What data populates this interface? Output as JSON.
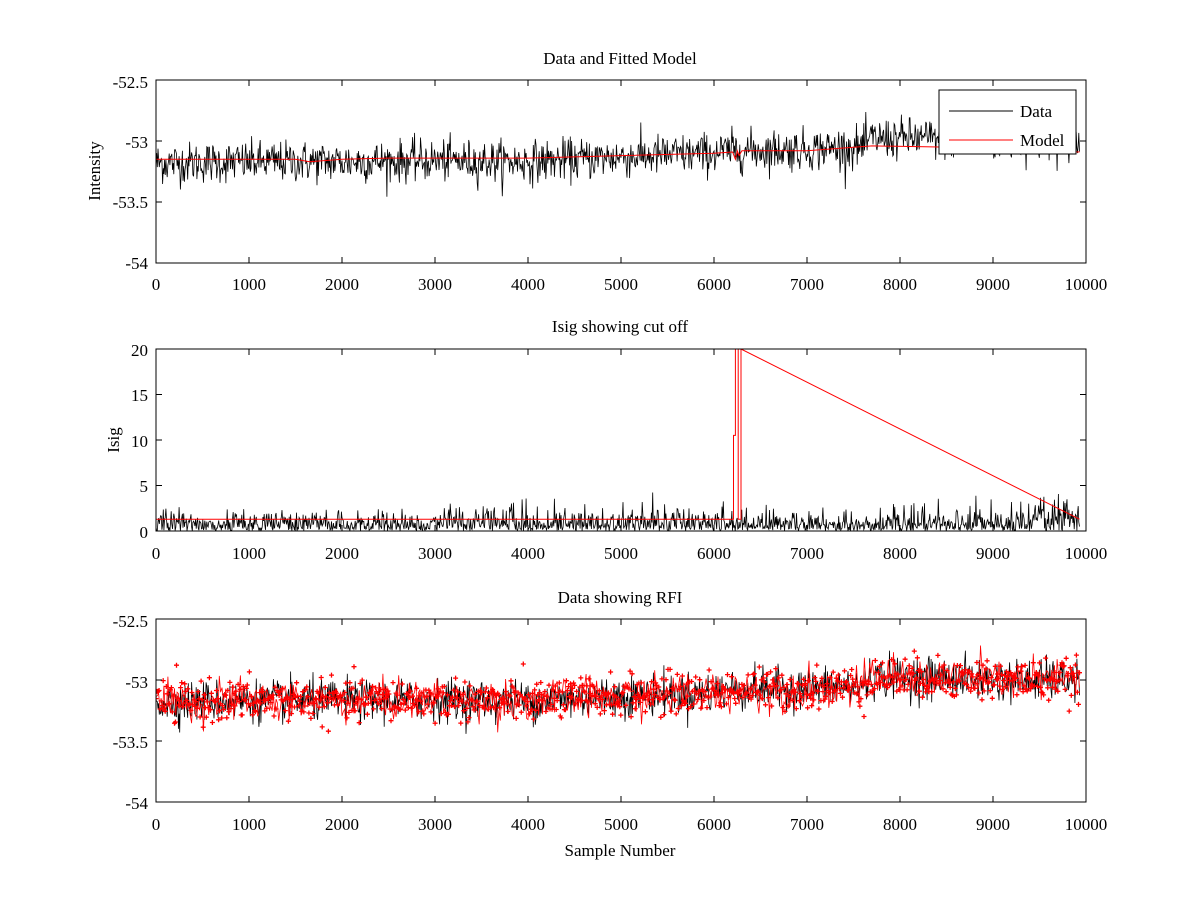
{
  "colors": {
    "data": "#000000",
    "model": "#ff0000",
    "rfi": "#ff0000",
    "axes": "#000000",
    "background": "#ffffff"
  },
  "chart_data": [
    {
      "type": "line",
      "title": "Data and Fitted Model",
      "xlabel": "",
      "ylabel": "Intensity",
      "xlim": [
        0,
        10000
      ],
      "ylim": [
        -54,
        -52.5
      ],
      "xticks": [
        "0",
        "1000",
        "2000",
        "3000",
        "4000",
        "5000",
        "6000",
        "7000",
        "8000",
        "9000",
        "10000"
      ],
      "yticks": [
        "-54",
        "-53.5",
        "-53",
        "-52.5"
      ],
      "legend": {
        "placement": "top-right",
        "entries": [
          "Data",
          "Model"
        ]
      },
      "series": [
        {
          "name": "Data",
          "color": "#000000",
          "kind": "noisy-trace",
          "x_range": [
            0,
            9930
          ],
          "center_x": [
            0,
            1000,
            2000,
            3000,
            4000,
            5000,
            6000,
            6200,
            7000,
            7600,
            7700,
            8500,
            9000,
            9930
          ],
          "center_y": [
            -53.18,
            -53.17,
            -53.17,
            -53.16,
            -53.17,
            -53.13,
            -53.1,
            -53.08,
            -53.07,
            -53.05,
            -52.98,
            -52.98,
            -53.0,
            -53.0
          ],
          "spread": 0.12
        },
        {
          "name": "Model",
          "color": "#ff0000",
          "x": [
            0,
            1000,
            1500,
            1650,
            2000,
            2500,
            3000,
            4000,
            5000,
            6000,
            6200,
            6230,
            6250,
            6270,
            6300,
            7000,
            7700,
            8500,
            9000,
            9930
          ],
          "y": [
            -53.15,
            -53.15,
            -53.15,
            -53.17,
            -53.15,
            -53.14,
            -53.14,
            -53.14,
            -53.12,
            -53.1,
            -53.09,
            -53.15,
            -53.08,
            -53.12,
            -53.08,
            -53.08,
            -53.04,
            -53.05,
            -53.07,
            -53.09
          ]
        }
      ]
    },
    {
      "type": "line",
      "title": "Isig showing cut off",
      "xlabel": "",
      "ylabel": "Isig",
      "xlim": [
        0,
        10000
      ],
      "ylim": [
        0,
        20
      ],
      "xticks": [
        "0",
        "1000",
        "2000",
        "3000",
        "4000",
        "5000",
        "6000",
        "7000",
        "8000",
        "9000",
        "10000"
      ],
      "yticks": [
        "0",
        "5",
        "10",
        "15",
        "20"
      ],
      "series": [
        {
          "color": "#000000",
          "kind": "noise-bars",
          "x_range": [
            0,
            9930
          ],
          "center_x": [
            0,
            3000,
            3900,
            4000,
            6000,
            7500,
            8000,
            9000,
            9930
          ],
          "peak_y": [
            2.2,
            2.4,
            3.2,
            2.5,
            2.5,
            2.0,
            2.5,
            3.0,
            3.6
          ]
        },
        {
          "color": "#ff0000",
          "x": [
            0,
            6200,
            6210,
            6210,
            6230,
            6230,
            6260,
            6260,
            6290,
            6290,
            9930
          ],
          "y": [
            1.3,
            1.3,
            1.3,
            10.5,
            10.5,
            20,
            20,
            1.3,
            1.3,
            20,
            1.3
          ]
        }
      ]
    },
    {
      "type": "scatter",
      "title": "Data showing RFI",
      "xlabel": "Sample Number",
      "ylabel": "",
      "xlim": [
        0,
        10000
      ],
      "ylim": [
        -54,
        -52.5
      ],
      "xticks": [
        "0",
        "1000",
        "2000",
        "3000",
        "4000",
        "5000",
        "6000",
        "7000",
        "8000",
        "9000",
        "10000"
      ],
      "yticks": [
        "-54",
        "-53.5",
        "-53",
        "-52.5"
      ],
      "series": [
        {
          "color": "#000000",
          "kind": "noisy-trace",
          "x_range": [
            0,
            9930
          ],
          "center_x": [
            0,
            1000,
            2000,
            3000,
            4000,
            5000,
            6000,
            6200,
            7000,
            7600,
            7700,
            8500,
            9000,
            9930
          ],
          "center_y": [
            -53.18,
            -53.17,
            -53.17,
            -53.16,
            -53.17,
            -53.13,
            -53.1,
            -53.08,
            -53.07,
            -53.05,
            -52.98,
            -52.98,
            -53.0,
            -53.0
          ],
          "spread": 0.12
        },
        {
          "color": "#ff0000",
          "kind": "markers",
          "marker": "+",
          "x_range": [
            0,
            9930
          ],
          "center_x": [
            0,
            1000,
            2000,
            3000,
            4000,
            5000,
            6000,
            6200,
            7000,
            7600,
            7700,
            8500,
            9000,
            9930
          ],
          "center_y": [
            -53.18,
            -53.17,
            -53.17,
            -53.16,
            -53.17,
            -53.13,
            -53.1,
            -53.08,
            -53.07,
            -53.05,
            -52.98,
            -52.98,
            -53.0,
            -53.0
          ],
          "spread": 0.12
        }
      ]
    }
  ]
}
